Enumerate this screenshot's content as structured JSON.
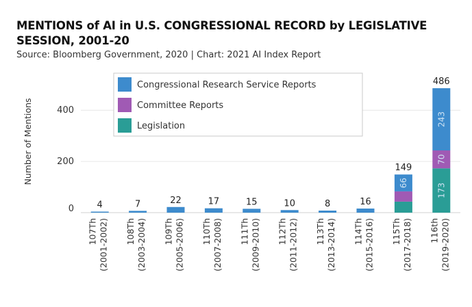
{
  "header": {
    "title": "MENTIONS of AI in U.S. CONGRESSIONAL RECORD by LEGISLATIVE SESSION, 2001-20",
    "source": "Source: Bloomberg Government, 2020 | Chart: 2021 AI Index Report"
  },
  "chart_data": {
    "type": "bar",
    "stacked": true,
    "ylabel": "Number of Mentions",
    "xlabel": "",
    "ylim": [
      0,
      520
    ],
    "yticks": [
      0,
      200,
      400
    ],
    "grid": true,
    "legend_position": "top",
    "categories": [
      [
        "107Th",
        "(2001-2002)"
      ],
      [
        "108Th",
        "(2003-2004)"
      ],
      [
        "109Th",
        "(2005-2006)"
      ],
      [
        "110Th",
        "(2007-2008)"
      ],
      [
        "111Th",
        "(2009-2010)"
      ],
      [
        "112Th",
        "(2011-2012)"
      ],
      [
        "113Th",
        "(2013-2014)"
      ],
      [
        "114Th",
        "(2015-2016)"
      ],
      [
        "115Th",
        "(2017-2018)"
      ],
      [
        "116th",
        "(2019-2020)"
      ]
    ],
    "totals": [
      4,
      7,
      22,
      17,
      15,
      10,
      8,
      16,
      149,
      486
    ],
    "series": [
      {
        "name": "Legislation",
        "color": "#2a9d96",
        "values": [
          0,
          0,
          0,
          0,
          0,
          0,
          0,
          0,
          43,
          173
        ],
        "labels": [
          null,
          null,
          null,
          null,
          null,
          null,
          null,
          null,
          null,
          "173"
        ]
      },
      {
        "name": "Committee Reports",
        "color": "#a05ab4",
        "values": [
          0,
          0,
          0,
          0,
          0,
          0,
          0,
          0,
          40,
          70
        ],
        "labels": [
          null,
          null,
          null,
          null,
          null,
          null,
          null,
          null,
          null,
          "70"
        ]
      },
      {
        "name": "Congressional Research Service Reports",
        "color": "#3d8bcd",
        "values": [
          4,
          7,
          22,
          17,
          15,
          10,
          8,
          16,
          66,
          243
        ],
        "labels": [
          null,
          null,
          null,
          null,
          null,
          null,
          null,
          null,
          "66",
          "243"
        ]
      }
    ],
    "legend_order": [
      "Congressional Research Service Reports",
      "Committee Reports",
      "Legislation"
    ]
  }
}
